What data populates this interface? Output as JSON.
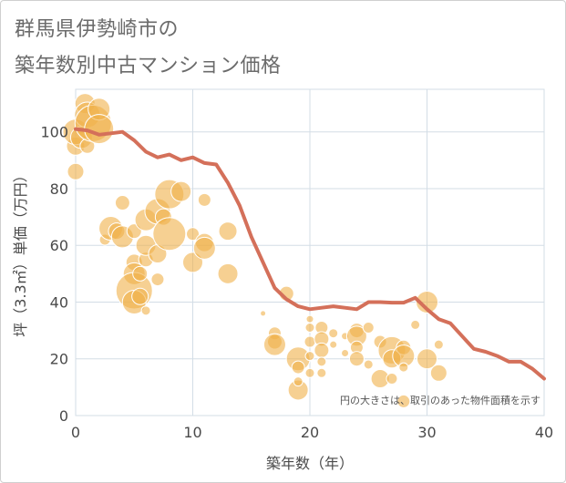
{
  "title_line1": "群馬県伊勢崎市の",
  "title_line2": "築年数別中古マンション価格",
  "chart_data": {
    "type": "scatter",
    "title": "群馬県伊勢崎市の築年数別中古マンション価格",
    "xlabel": "築年数（年）",
    "ylabel": "坪（3.3㎡）単価（万円）",
    "xlim": [
      0,
      40
    ],
    "ylim": [
      0,
      115
    ],
    "xticks": [
      0,
      10,
      20,
      30,
      40
    ],
    "yticks": [
      0,
      20,
      40,
      60,
      80,
      100
    ],
    "grid": true,
    "note": "円の大きさは、取引のあった物件面積を示す",
    "colors": {
      "bubble": "#f0b04a",
      "line": "#d4705a",
      "grid": "#d3dde6",
      "plot_bg": "#ffffff"
    },
    "line_series": {
      "x": [
        0,
        1,
        2,
        3,
        4,
        5,
        6,
        7,
        8,
        9,
        10,
        11,
        12,
        13,
        14,
        15,
        16,
        17,
        18,
        19,
        20,
        21,
        22,
        23,
        24,
        25,
        26,
        27,
        28,
        29,
        30,
        31,
        32,
        33,
        34,
        35,
        36,
        37,
        38,
        39,
        40
      ],
      "y": [
        101,
        100.5,
        99,
        99.5,
        100,
        97,
        93,
        91,
        92,
        90,
        91,
        89,
        88.5,
        82,
        74,
        63,
        54,
        45,
        41,
        38.5,
        37.5,
        38,
        38.5,
        38,
        37.5,
        40,
        40,
        39.8,
        39.8,
        41.5,
        37.5,
        34,
        32.5,
        28,
        23.5,
        22.5,
        21,
        19,
        19,
        16.5,
        13
      ]
    },
    "bubbles": [
      {
        "x": 0,
        "y": 95,
        "s": 10
      },
      {
        "x": 0,
        "y": 100,
        "s": 14
      },
      {
        "x": 0,
        "y": 86,
        "s": 9
      },
      {
        "x": 0.5,
        "y": 98,
        "s": 12
      },
      {
        "x": 0.8,
        "y": 110,
        "s": 11
      },
      {
        "x": 1,
        "y": 106,
        "s": 14
      },
      {
        "x": 1,
        "y": 95,
        "s": 8
      },
      {
        "x": 1.5,
        "y": 103,
        "s": 20
      },
      {
        "x": 2,
        "y": 108,
        "s": 12
      },
      {
        "x": 2,
        "y": 101,
        "s": 16
      },
      {
        "x": 2.5,
        "y": 62,
        "s": 6
      },
      {
        "x": 3,
        "y": 66,
        "s": 13
      },
      {
        "x": 3.5,
        "y": 65,
        "s": 9
      },
      {
        "x": 4,
        "y": 75,
        "s": 8
      },
      {
        "x": 4,
        "y": 63,
        "s": 12
      },
      {
        "x": 5,
        "y": 65,
        "s": 8
      },
      {
        "x": 5,
        "y": 54,
        "s": 9
      },
      {
        "x": 5,
        "y": 50,
        "s": 12
      },
      {
        "x": 5,
        "y": 44,
        "s": 20
      },
      {
        "x": 5,
        "y": 40,
        "s": 13
      },
      {
        "x": 5.5,
        "y": 50,
        "s": 8
      },
      {
        "x": 5.5,
        "y": 42,
        "s": 9
      },
      {
        "x": 6,
        "y": 37,
        "s": 5
      },
      {
        "x": 6,
        "y": 55,
        "s": 8
      },
      {
        "x": 6,
        "y": 60,
        "s": 11
      },
      {
        "x": 6,
        "y": 69,
        "s": 12
      },
      {
        "x": 7,
        "y": 72,
        "s": 14
      },
      {
        "x": 7,
        "y": 57,
        "s": 10
      },
      {
        "x": 7,
        "y": 48,
        "s": 7
      },
      {
        "x": 7.5,
        "y": 70,
        "s": 9
      },
      {
        "x": 8,
        "y": 78,
        "s": 16
      },
      {
        "x": 8,
        "y": 64,
        "s": 18
      },
      {
        "x": 9,
        "y": 79,
        "s": 11
      },
      {
        "x": 10,
        "y": 54,
        "s": 11
      },
      {
        "x": 10,
        "y": 64,
        "s": 7
      },
      {
        "x": 11,
        "y": 61,
        "s": 10
      },
      {
        "x": 11,
        "y": 59,
        "s": 12
      },
      {
        "x": 11,
        "y": 76,
        "s": 7
      },
      {
        "x": 13,
        "y": 50,
        "s": 11
      },
      {
        "x": 13,
        "y": 65,
        "s": 10
      },
      {
        "x": 16,
        "y": 36,
        "s": 3
      },
      {
        "x": 17,
        "y": 29,
        "s": 7
      },
      {
        "x": 17,
        "y": 26,
        "s": 8
      },
      {
        "x": 17,
        "y": 25,
        "s": 12
      },
      {
        "x": 18,
        "y": 43,
        "s": 8
      },
      {
        "x": 19,
        "y": 20,
        "s": 13
      },
      {
        "x": 19,
        "y": 9,
        "s": 11
      },
      {
        "x": 19,
        "y": 17,
        "s": 7
      },
      {
        "x": 19,
        "y": 12,
        "s": 5
      },
      {
        "x": 20,
        "y": 34,
        "s": 4
      },
      {
        "x": 20,
        "y": 31,
        "s": 5
      },
      {
        "x": 20,
        "y": 26,
        "s": 6
      },
      {
        "x": 20,
        "y": 21,
        "s": 5
      },
      {
        "x": 20,
        "y": 15,
        "s": 5
      },
      {
        "x": 21,
        "y": 31,
        "s": 7
      },
      {
        "x": 21,
        "y": 27,
        "s": 8
      },
      {
        "x": 21,
        "y": 23,
        "s": 8
      },
      {
        "x": 21,
        "y": 19,
        "s": 5
      },
      {
        "x": 21,
        "y": 15,
        "s": 5
      },
      {
        "x": 22,
        "y": 29,
        "s": 5
      },
      {
        "x": 22,
        "y": 25,
        "s": 4
      },
      {
        "x": 23,
        "y": 28,
        "s": 4
      },
      {
        "x": 23,
        "y": 22,
        "s": 4
      },
      {
        "x": 24,
        "y": 30,
        "s": 8
      },
      {
        "x": 24,
        "y": 28,
        "s": 11
      },
      {
        "x": 24,
        "y": 24,
        "s": 7
      },
      {
        "x": 24,
        "y": 20,
        "s": 8
      },
      {
        "x": 25,
        "y": 31,
        "s": 6
      },
      {
        "x": 25,
        "y": 18,
        "s": 5
      },
      {
        "x": 26,
        "y": 13,
        "s": 10
      },
      {
        "x": 26,
        "y": 26,
        "s": 7
      },
      {
        "x": 27,
        "y": 23,
        "s": 15
      },
      {
        "x": 27,
        "y": 20,
        "s": 10
      },
      {
        "x": 27,
        "y": 13,
        "s": 6
      },
      {
        "x": 28,
        "y": 24,
        "s": 8
      },
      {
        "x": 28,
        "y": 21,
        "s": 12
      },
      {
        "x": 28,
        "y": 17,
        "s": 5
      },
      {
        "x": 28,
        "y": 5,
        "s": 7
      },
      {
        "x": 29,
        "y": 32,
        "s": 5
      },
      {
        "x": 30,
        "y": 40,
        "s": 12
      },
      {
        "x": 30,
        "y": 20,
        "s": 11
      },
      {
        "x": 31,
        "y": 25,
        "s": 5
      },
      {
        "x": 31,
        "y": 15,
        "s": 9
      }
    ]
  }
}
